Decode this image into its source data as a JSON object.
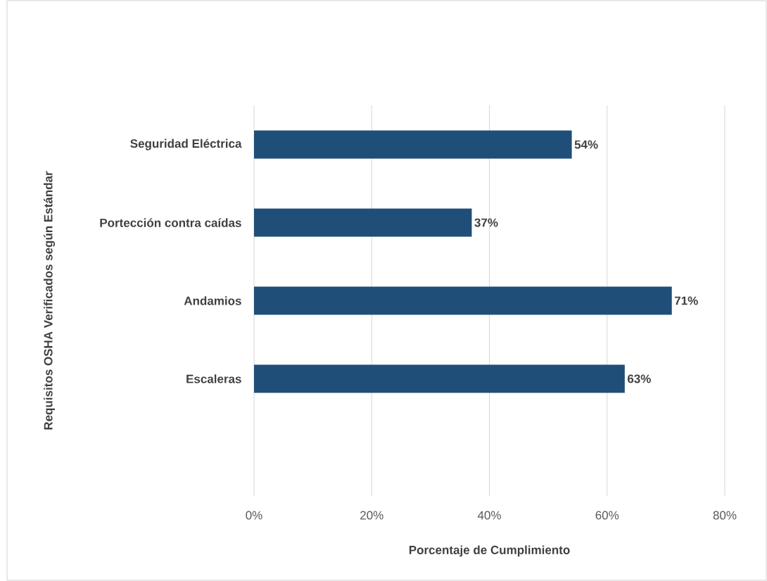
{
  "chart_data": {
    "type": "bar",
    "orientation": "horizontal",
    "categories": [
      "Seguridad Eléctrica",
      "Portección contra caídas",
      "Andamios",
      "Escaleras",
      null
    ],
    "values": [
      54,
      37,
      71,
      63,
      null
    ],
    "value_labels": [
      "54%",
      "37%",
      "71%",
      "63%",
      null
    ],
    "color": "#1f4e79",
    "xlim": [
      0,
      80
    ],
    "xticks": [
      {
        "value": 0,
        "label": "0%"
      },
      {
        "value": 20,
        "label": "20%"
      },
      {
        "value": 40,
        "label": "40%"
      },
      {
        "value": 60,
        "label": "60%"
      },
      {
        "value": 80,
        "label": "80%"
      }
    ],
    "grid": "x",
    "xlabel": "Porcentaje de Cumplimiento",
    "ylabel": "Requisitos OSHA Verificados según Estándar"
  }
}
